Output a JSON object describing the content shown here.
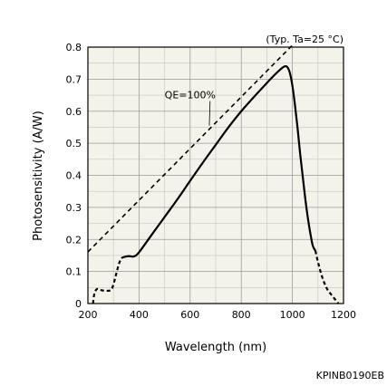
{
  "chart_data": {
    "type": "line",
    "title": "",
    "condition_note": "(Typ. Ta=25 °C)",
    "xlabel": "Wavelength (nm)",
    "ylabel": "Photosensitivity (A/W)",
    "xlim": [
      200,
      1200
    ],
    "ylim": [
      0,
      0.8
    ],
    "x_ticks": [
      200,
      400,
      600,
      800,
      1000,
      1200
    ],
    "x_tick_labels": [
      "200",
      "400",
      "600",
      "800",
      "1000",
      "1200"
    ],
    "y_ticks": [
      0,
      0.1,
      0.2,
      0.3,
      0.4,
      0.5,
      0.6,
      0.7,
      0.8
    ],
    "y_tick_labels": [
      "0",
      "0.1",
      "0.2",
      "0.3",
      "0.4",
      "0.5",
      "0.6",
      "0.7",
      "0.8"
    ],
    "grid": true,
    "series": [
      {
        "name": "QE=100%",
        "line_style": "dashed",
        "x": [
          200,
          1000
        ],
        "y": [
          0.161,
          0.806
        ]
      },
      {
        "name": "",
        "line_style": "dashed",
        "x": [
          220,
          225,
          235,
          250,
          270,
          290,
          300,
          310,
          320,
          330,
          340
        ],
        "y": [
          0.0,
          0.03,
          0.045,
          0.042,
          0.04,
          0.042,
          0.06,
          0.09,
          0.12,
          0.14,
          0.145
        ]
      },
      {
        "name": "",
        "line_style": "solid",
        "x": [
          340,
          360,
          380,
          400,
          450,
          500,
          550,
          600,
          650,
          700,
          750,
          800,
          850,
          900,
          930,
          950,
          960,
          970,
          980,
          990,
          1000,
          1010,
          1020,
          1030,
          1040,
          1050,
          1060,
          1070,
          1080,
          1090
        ],
        "y": [
          0.145,
          0.148,
          0.147,
          0.16,
          0.215,
          0.27,
          0.325,
          0.383,
          0.44,
          0.495,
          0.55,
          0.6,
          0.645,
          0.688,
          0.713,
          0.728,
          0.735,
          0.74,
          0.738,
          0.72,
          0.68,
          0.62,
          0.55,
          0.47,
          0.4,
          0.33,
          0.27,
          0.22,
          0.18,
          0.165
        ]
      },
      {
        "name": "",
        "line_style": "dashed",
        "x": [
          1090,
          1100,
          1110,
          1120,
          1130,
          1140,
          1150,
          1160,
          1170,
          1180
        ],
        "y": [
          0.165,
          0.13,
          0.1,
          0.075,
          0.055,
          0.04,
          0.03,
          0.02,
          0.01,
          0.0
        ]
      }
    ],
    "annotations": [
      {
        "text": "QE=100%",
        "x": 600,
        "y": 0.64,
        "arrow_to_x": 675,
        "arrow_to_y": 0.555
      }
    ],
    "figure_code": "KPINB0190EB"
  }
}
